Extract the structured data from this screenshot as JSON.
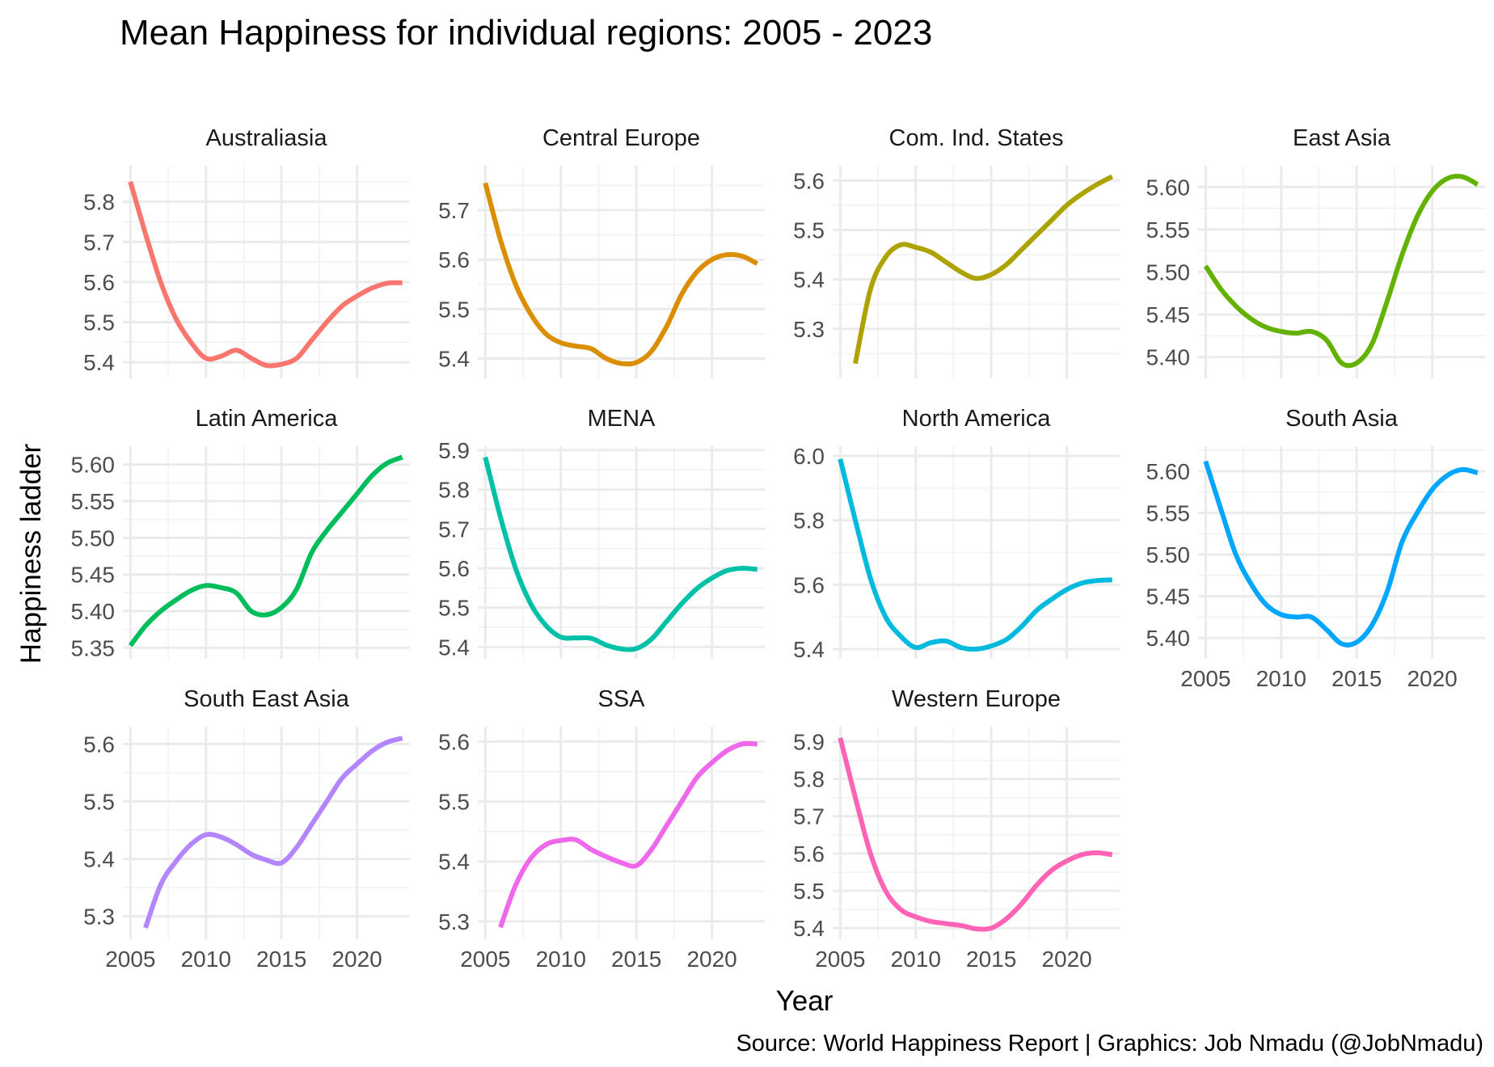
{
  "title": "Mean Happiness for individual regions: 2005 - 2023",
  "caption": "Source: World Happiness Report  |  Graphics: Job Nmadu (@JobNmadu)",
  "chart_data": {
    "type": "line",
    "xlabel": "Year",
    "ylabel": "Happiness ladder",
    "xlim": [
      2004.5,
      2023.5
    ],
    "x_ticks": [
      2005,
      2010,
      2015,
      2020
    ],
    "x_tick_labels": [
      "2005",
      "2010",
      "2015",
      "2020"
    ],
    "grid": true,
    "legend": "none",
    "facet_layout": "4 columns, 3 rows, fixed x, free y",
    "panels": [
      {
        "name": "Australiasia",
        "color": "#F8766D",
        "ylim": [
          5.36,
          5.89
        ],
        "y_ticks": [
          5.4,
          5.5,
          5.6,
          5.7,
          5.8
        ],
        "y_tick_labels": [
          "5.4",
          "5.5",
          "5.6",
          "5.7",
          "5.8"
        ],
        "x": [
          2005,
          2006,
          2007,
          2008,
          2009,
          2010,
          2011,
          2012,
          2013,
          2014,
          2015,
          2016,
          2017,
          2018,
          2019,
          2020,
          2021,
          2022,
          2023
        ],
        "values": [
          5.85,
          5.72,
          5.6,
          5.51,
          5.45,
          5.41,
          5.415,
          5.43,
          5.41,
          5.392,
          5.395,
          5.41,
          5.455,
          5.5,
          5.54,
          5.565,
          5.585,
          5.597,
          5.598
        ]
      },
      {
        "name": "Central Europe",
        "color": "#DB8E00",
        "ylim": [
          5.36,
          5.79
        ],
        "y_ticks": [
          5.4,
          5.5,
          5.6,
          5.7
        ],
        "y_tick_labels": [
          "5.4",
          "5.5",
          "5.6",
          "5.7"
        ],
        "x": [
          2005,
          2006,
          2007,
          2008,
          2009,
          2010,
          2011,
          2012,
          2013,
          2014,
          2015,
          2016,
          2017,
          2018,
          2019,
          2020,
          2021,
          2022,
          2023
        ],
        "values": [
          5.755,
          5.64,
          5.55,
          5.49,
          5.45,
          5.432,
          5.425,
          5.42,
          5.4,
          5.39,
          5.392,
          5.415,
          5.465,
          5.53,
          5.575,
          5.6,
          5.61,
          5.607,
          5.592
        ]
      },
      {
        "name": "Com. Ind. States",
        "color": "#AEA200",
        "ylim": [
          5.2,
          5.63
        ],
        "y_ticks": [
          5.3,
          5.4,
          5.5,
          5.6
        ],
        "y_tick_labels": [
          "5.3",
          "5.4",
          "5.5",
          "5.6"
        ],
        "x": [
          2006,
          2007,
          2008,
          2009,
          2010,
          2011,
          2012,
          2013,
          2014,
          2015,
          2016,
          2017,
          2018,
          2019,
          2020,
          2021,
          2022,
          2023
        ],
        "values": [
          5.23,
          5.38,
          5.445,
          5.47,
          5.465,
          5.455,
          5.435,
          5.415,
          5.402,
          5.41,
          5.43,
          5.46,
          5.49,
          5.52,
          5.55,
          5.573,
          5.592,
          5.608
        ]
      },
      {
        "name": "East Asia",
        "color": "#64B200",
        "ylim": [
          5.375,
          5.625
        ],
        "y_ticks": [
          5.4,
          5.45,
          5.5,
          5.55,
          5.6
        ],
        "y_tick_labels": [
          "5.40",
          "5.45",
          "5.50",
          "5.55",
          "5.60"
        ],
        "x": [
          2005,
          2006,
          2007,
          2008,
          2009,
          2010,
          2011,
          2012,
          2013,
          2014,
          2015,
          2016,
          2017,
          2018,
          2019,
          2020,
          2021,
          2022,
          2023
        ],
        "values": [
          5.507,
          5.48,
          5.46,
          5.445,
          5.435,
          5.43,
          5.428,
          5.43,
          5.42,
          5.393,
          5.393,
          5.415,
          5.465,
          5.52,
          5.565,
          5.595,
          5.61,
          5.612,
          5.603
        ]
      },
      {
        "name": "Latin America",
        "color": "#00BD5C",
        "ylim": [
          5.335,
          5.625
        ],
        "y_ticks": [
          5.35,
          5.4,
          5.45,
          5.5,
          5.55,
          5.6
        ],
        "y_tick_labels": [
          "5.35",
          "5.40",
          "5.45",
          "5.50",
          "5.55",
          "5.60"
        ],
        "x": [
          2005,
          2006,
          2007,
          2008,
          2009,
          2010,
          2011,
          2012,
          2013,
          2014,
          2015,
          2016,
          2017,
          2018,
          2019,
          2020,
          2021,
          2022,
          2023
        ],
        "values": [
          5.353,
          5.38,
          5.4,
          5.415,
          5.428,
          5.435,
          5.432,
          5.425,
          5.4,
          5.395,
          5.405,
          5.43,
          5.48,
          5.51,
          5.535,
          5.56,
          5.585,
          5.602,
          5.61
        ]
      },
      {
        "name": "MENA",
        "color": "#00C1A7",
        "ylim": [
          5.37,
          5.91
        ],
        "y_ticks": [
          5.4,
          5.5,
          5.6,
          5.7,
          5.8,
          5.9
        ],
        "y_tick_labels": [
          "5.4",
          "5.5",
          "5.6",
          "5.7",
          "5.8",
          "5.9"
        ],
        "x": [
          2005,
          2006,
          2007,
          2008,
          2009,
          2010,
          2011,
          2012,
          2013,
          2014,
          2015,
          2016,
          2017,
          2018,
          2019,
          2020,
          2021,
          2022,
          2023
        ],
        "values": [
          5.882,
          5.73,
          5.6,
          5.51,
          5.455,
          5.425,
          5.423,
          5.422,
          5.405,
          5.395,
          5.396,
          5.42,
          5.465,
          5.51,
          5.548,
          5.575,
          5.594,
          5.6,
          5.597
        ]
      },
      {
        "name": "North America",
        "color": "#00BADE",
        "ylim": [
          5.37,
          6.03
        ],
        "y_ticks": [
          5.4,
          5.6,
          5.8,
          6.0
        ],
        "y_tick_labels": [
          "5.4",
          "5.6",
          "5.8",
          "6.0"
        ],
        "x": [
          2005,
          2006,
          2007,
          2008,
          2009,
          2010,
          2011,
          2012,
          2013,
          2014,
          2015,
          2016,
          2017,
          2018,
          2019,
          2020,
          2021,
          2022,
          2023
        ],
        "values": [
          5.99,
          5.8,
          5.62,
          5.5,
          5.44,
          5.405,
          5.42,
          5.425,
          5.405,
          5.4,
          5.41,
          5.43,
          5.47,
          5.52,
          5.555,
          5.585,
          5.605,
          5.613,
          5.615
        ]
      },
      {
        "name": "South Asia",
        "color": "#00A6FF",
        "ylim": [
          5.375,
          5.63
        ],
        "y_ticks": [
          5.4,
          5.45,
          5.5,
          5.55,
          5.6
        ],
        "y_tick_labels": [
          "5.40",
          "5.45",
          "5.50",
          "5.55",
          "5.60"
        ],
        "x": [
          2005,
          2006,
          2007,
          2008,
          2009,
          2010,
          2011,
          2012,
          2013,
          2014,
          2015,
          2016,
          2017,
          2018,
          2019,
          2020,
          2021,
          2022,
          2023
        ],
        "values": [
          5.612,
          5.555,
          5.5,
          5.465,
          5.44,
          5.428,
          5.425,
          5.425,
          5.41,
          5.393,
          5.395,
          5.415,
          5.455,
          5.515,
          5.55,
          5.578,
          5.595,
          5.602,
          5.598
        ]
      },
      {
        "name": "South East Asia",
        "color": "#B385FF",
        "ylim": [
          5.26,
          5.63
        ],
        "y_ticks": [
          5.3,
          5.4,
          5.5,
          5.6
        ],
        "y_tick_labels": [
          "5.3",
          "5.4",
          "5.5",
          "5.6"
        ],
        "x": [
          2006,
          2007,
          2008,
          2009,
          2010,
          2011,
          2012,
          2013,
          2014,
          2015,
          2016,
          2017,
          2018,
          2019,
          2020,
          2021,
          2022,
          2023
        ],
        "values": [
          5.28,
          5.355,
          5.395,
          5.425,
          5.442,
          5.438,
          5.425,
          5.408,
          5.398,
          5.393,
          5.42,
          5.46,
          5.5,
          5.54,
          5.565,
          5.588,
          5.603,
          5.61
        ]
      },
      {
        "name": "SSA",
        "color": "#EF67EB",
        "ylim": [
          5.27,
          5.625
        ],
        "y_ticks": [
          5.3,
          5.4,
          5.5,
          5.6
        ],
        "y_tick_labels": [
          "5.3",
          "5.4",
          "5.5",
          "5.6"
        ],
        "x": [
          2006,
          2007,
          2008,
          2009,
          2010,
          2011,
          2012,
          2013,
          2014,
          2015,
          2016,
          2017,
          2018,
          2019,
          2020,
          2021,
          2022,
          2023
        ],
        "values": [
          5.29,
          5.36,
          5.405,
          5.428,
          5.435,
          5.436,
          5.42,
          5.408,
          5.398,
          5.393,
          5.42,
          5.46,
          5.5,
          5.54,
          5.565,
          5.585,
          5.596,
          5.596
        ]
      },
      {
        "name": "Western Europe",
        "color": "#FF63B6",
        "ylim": [
          5.37,
          5.94
        ],
        "y_ticks": [
          5.4,
          5.5,
          5.6,
          5.7,
          5.8,
          5.9
        ],
        "y_tick_labels": [
          "5.4",
          "5.5",
          "5.6",
          "5.7",
          "5.8",
          "5.9"
        ],
        "x": [
          2005,
          2006,
          2007,
          2008,
          2009,
          2010,
          2011,
          2012,
          2013,
          2014,
          2015,
          2016,
          2017,
          2018,
          2019,
          2020,
          2021,
          2022,
          2023
        ],
        "values": [
          5.91,
          5.75,
          5.6,
          5.5,
          5.45,
          5.43,
          5.418,
          5.412,
          5.407,
          5.398,
          5.4,
          5.425,
          5.465,
          5.515,
          5.555,
          5.58,
          5.597,
          5.602,
          5.597
        ]
      }
    ]
  }
}
